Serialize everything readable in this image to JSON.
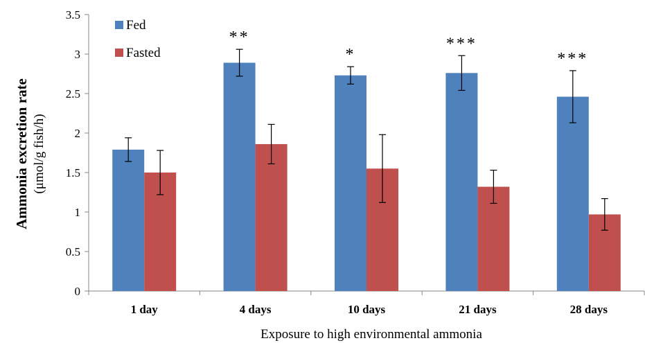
{
  "chart_data": {
    "type": "bar",
    "categories": [
      "1 day",
      "4 days",
      "10 days",
      "21 days",
      "28 days"
    ],
    "series": [
      {
        "name": "Fed",
        "color": "#4F81BD",
        "values": [
          1.79,
          2.89,
          2.73,
          2.76,
          2.46
        ],
        "errors": [
          0.15,
          0.17,
          0.11,
          0.22,
          0.33
        ]
      },
      {
        "name": "Fasted",
        "color": "#C0504D",
        "values": [
          1.5,
          1.86,
          1.55,
          1.32,
          0.97
        ],
        "errors": [
          0.28,
          0.25,
          0.43,
          0.21,
          0.2
        ]
      }
    ],
    "significance": [
      "",
      "**",
      "*",
      "***",
      "***"
    ],
    "ylabel": "Ammonia excretion rate",
    "ylabel_unit": "(μmol/g fish/h)",
    "xlabel": "Exposure to high environmental ammonia",
    "ylim": [
      0,
      3.5
    ],
    "yticks": [
      "0",
      "0.5",
      "1",
      "1.5",
      "2",
      "2.5",
      "3",
      "3.5"
    ],
    "ytick_values": [
      0,
      0.5,
      1,
      1.5,
      2,
      2.5,
      3,
      3.5
    ],
    "legend_position": "top-left",
    "grid": false
  }
}
